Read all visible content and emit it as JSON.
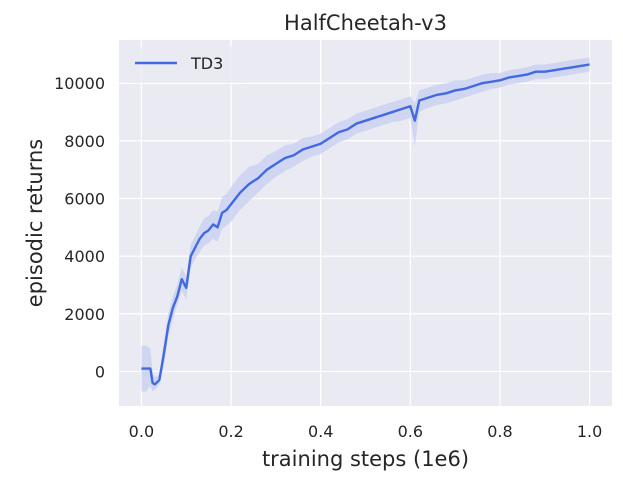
{
  "chart_data": {
    "type": "line",
    "title": "HalfCheetah-v3",
    "xlabel": "training steps (1e6)",
    "ylabel": "episodic returns",
    "xlim": [
      -0.05,
      1.05
    ],
    "ylim": [
      -1200,
      11500
    ],
    "xticks": [
      0.0,
      0.2,
      0.4,
      0.6,
      0.8,
      1.0
    ],
    "xtick_labels": [
      "0.0",
      "0.2",
      "0.4",
      "0.6",
      "0.8",
      "1.0"
    ],
    "yticks": [
      0,
      2000,
      4000,
      6000,
      8000,
      10000
    ],
    "ytick_labels": [
      "0",
      "2000",
      "4000",
      "6000",
      "8000",
      "10000"
    ],
    "grid": true,
    "legend_position": "top-left",
    "colors": {
      "background": "#EAEAF2",
      "grid": "#FFFFFF",
      "series": "#4169E1",
      "band": "#C7CFF2"
    },
    "series": [
      {
        "name": "TD3",
        "x": [
          0.0,
          0.01,
          0.02,
          0.025,
          0.03,
          0.04,
          0.05,
          0.06,
          0.07,
          0.08,
          0.09,
          0.1,
          0.11,
          0.12,
          0.13,
          0.14,
          0.15,
          0.16,
          0.17,
          0.18,
          0.19,
          0.2,
          0.22,
          0.24,
          0.26,
          0.28,
          0.3,
          0.32,
          0.34,
          0.36,
          0.38,
          0.4,
          0.42,
          0.44,
          0.46,
          0.48,
          0.5,
          0.52,
          0.54,
          0.56,
          0.58,
          0.6,
          0.61,
          0.62,
          0.64,
          0.66,
          0.68,
          0.7,
          0.72,
          0.74,
          0.76,
          0.78,
          0.8,
          0.82,
          0.84,
          0.86,
          0.88,
          0.9,
          0.92,
          0.94,
          0.96,
          0.98,
          1.0
        ],
        "y": [
          100,
          100,
          100,
          -400,
          -450,
          -300,
          600,
          1600,
          2200,
          2600,
          3200,
          2900,
          4000,
          4300,
          4600,
          4800,
          4900,
          5100,
          5000,
          5500,
          5600,
          5800,
          6200,
          6500,
          6700,
          7000,
          7200,
          7400,
          7500,
          7700,
          7800,
          7900,
          8100,
          8300,
          8400,
          8600,
          8700,
          8800,
          8900,
          9000,
          9100,
          9200,
          8700,
          9400,
          9500,
          9600,
          9650,
          9750,
          9800,
          9900,
          10000,
          10050,
          10100,
          10200,
          10250,
          10300,
          10400,
          10400,
          10450,
          10500,
          10550,
          10600,
          10650
        ],
        "y_lower": [
          -700,
          -700,
          -500,
          -700,
          -650,
          -450,
          200,
          1200,
          1800,
          2300,
          2800,
          2500,
          3600,
          3900,
          4150,
          4350,
          4450,
          4600,
          4500,
          4950,
          5050,
          5200,
          5600,
          5900,
          6200,
          6500,
          6750,
          6950,
          7100,
          7300,
          7450,
          7550,
          7750,
          7950,
          8050,
          8250,
          8350,
          8450,
          8550,
          8650,
          8700,
          8800,
          7800,
          9000,
          9150,
          9250,
          9300,
          9400,
          9500,
          9600,
          9700,
          9800,
          9850,
          9950,
          10000,
          10050,
          10150,
          10150,
          10200,
          10250,
          10300,
          10350,
          10400
        ],
        "y_upper": [
          900,
          900,
          800,
          0,
          -200,
          -100,
          1000,
          2000,
          2600,
          3000,
          3600,
          3300,
          4400,
          4700,
          5050,
          5300,
          5400,
          5600,
          5550,
          6050,
          6150,
          6400,
          6800,
          7100,
          7200,
          7500,
          7650,
          7850,
          7900,
          8100,
          8150,
          8250,
          8450,
          8650,
          8750,
          8950,
          9050,
          9150,
          9250,
          9350,
          9450,
          9550,
          9300,
          9750,
          9850,
          9950,
          10000,
          10100,
          10100,
          10200,
          10300,
          10350,
          10350,
          10450,
          10500,
          10550,
          10650,
          10650,
          10700,
          10750,
          10800,
          10850,
          10900
        ]
      }
    ]
  }
}
